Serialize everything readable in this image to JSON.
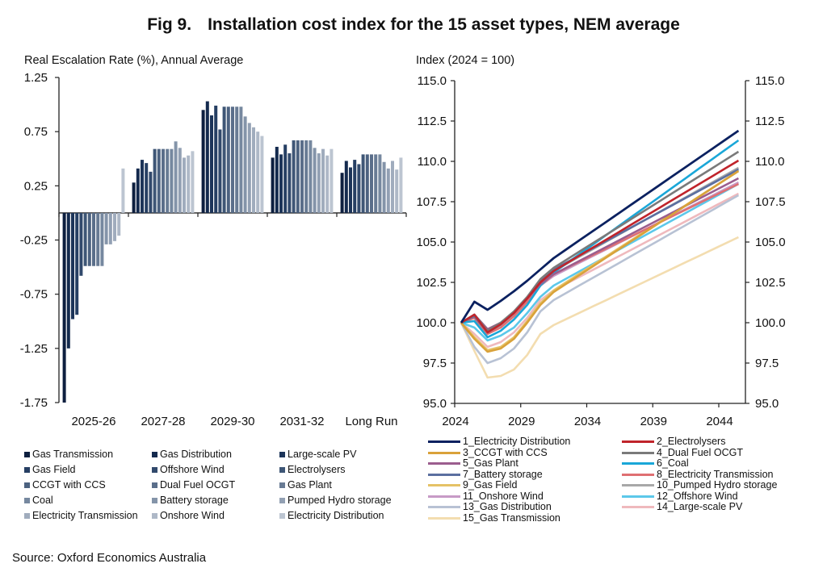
{
  "title": {
    "fig": "Fig 9.",
    "text": "Installation cost index for the 15 asset types, NEM average"
  },
  "source": "Source: Oxford Economics Australia",
  "chart_data": [
    {
      "type": "bar",
      "title": "Real Escalation Rate (%), Annual Average",
      "ylabel": "Real Escalation Rate (%), Annual Average",
      "xlabel": "",
      "ylim": [
        -1.75,
        1.25
      ],
      "yticks": [
        "1.25",
        "0.75",
        "0.25",
        "-0.25",
        "-0.75",
        "-1.25",
        "-1.75"
      ],
      "ytick_values": [
        1.25,
        0.75,
        0.25,
        -0.25,
        -0.75,
        -1.25,
        -1.75
      ],
      "categories": [
        "2025-26",
        "2027-28",
        "2029-30",
        "2031-32",
        "Long Run"
      ],
      "legend_position": "bottom",
      "series": [
        {
          "name": "Gas Transmission",
          "color": "#0d1f3f",
          "values": [
            -1.75,
            0.28,
            0.95,
            0.51,
            0.37
          ]
        },
        {
          "name": "Gas Distribution",
          "color": "#142a4e",
          "values": [
            -1.25,
            0.41,
            1.03,
            0.61,
            0.48
          ]
        },
        {
          "name": "Large-scale PV",
          "color": "#1c3459",
          "values": [
            -0.98,
            0.49,
            0.9,
            0.54,
            0.42
          ]
        },
        {
          "name": "Gas Field",
          "color": "#263f63",
          "values": [
            -0.94,
            0.46,
            0.99,
            0.63,
            0.49
          ]
        },
        {
          "name": "Offshore Wind",
          "color": "#31496c",
          "values": [
            -0.58,
            0.38,
            0.77,
            0.55,
            0.45
          ]
        },
        {
          "name": "Electrolysers",
          "color": "#3e5676",
          "values": [
            -0.49,
            0.59,
            0.98,
            0.67,
            0.54
          ]
        },
        {
          "name": "CCGT with CCS",
          "color": "#4c6280",
          "values": [
            -0.49,
            0.59,
            0.98,
            0.67,
            0.54
          ]
        },
        {
          "name": "Dual Fuel OCGT",
          "color": "#5a6e8a",
          "values": [
            -0.49,
            0.59,
            0.98,
            0.67,
            0.54
          ]
        },
        {
          "name": "Gas Plant",
          "color": "#687b94",
          "values": [
            -0.49,
            0.59,
            0.98,
            0.67,
            0.54
          ]
        },
        {
          "name": "Coal",
          "color": "#76889f",
          "values": [
            -0.49,
            0.59,
            0.98,
            0.67,
            0.54
          ]
        },
        {
          "name": "Battery storage",
          "color": "#8494a9",
          "values": [
            -0.29,
            0.66,
            0.89,
            0.6,
            0.47
          ]
        },
        {
          "name": "Pumped Hydro storage",
          "color": "#92a0b3",
          "values": [
            -0.29,
            0.6,
            0.83,
            0.55,
            0.41
          ]
        },
        {
          "name": "Electricity Transmission",
          "color": "#a0acbd",
          "values": [
            -0.26,
            0.51,
            0.79,
            0.59,
            0.48
          ]
        },
        {
          "name": "Onshore Wind",
          "color": "#aeb8c7",
          "values": [
            -0.21,
            0.53,
            0.75,
            0.53,
            0.4
          ]
        },
        {
          "name": "Electricity Distribution",
          "color": "#bcc5d1",
          "values": [
            0.41,
            0.57,
            0.71,
            0.59,
            0.51
          ]
        }
      ]
    },
    {
      "type": "line",
      "title": "Index (2024 = 100)",
      "ylabel": "Index (2024 = 100)",
      "xlabel": "",
      "ylim": [
        95.0,
        115.0
      ],
      "xlim": [
        2024,
        2045
      ],
      "yticks": [
        "115.0",
        "112.5",
        "110.0",
        "107.5",
        "105.0",
        "102.5",
        "100.0",
        "97.5",
        "95.0"
      ],
      "ytick_values": [
        115.0,
        112.5,
        110.0,
        107.5,
        105.0,
        102.5,
        100.0,
        97.5,
        95.0
      ],
      "xticks": [
        "2024",
        "2029",
        "2034",
        "2039",
        "2044"
      ],
      "xtick_values": [
        2024,
        2029,
        2034,
        2039,
        2044
      ],
      "x": [
        2024,
        2025,
        2026,
        2027,
        2028,
        2029,
        2030,
        2031,
        2032,
        2033,
        2034,
        2035,
        2036,
        2037,
        2038,
        2039,
        2040,
        2041,
        2042,
        2043,
        2044,
        2045
      ],
      "legend_position": "bottom",
      "series": [
        {
          "name": "1_Electricity Distribution",
          "color": "#0b2160",
          "anchors": [
            100.0,
            101.3,
            100.8,
            101.35,
            101.95,
            102.6,
            103.3,
            104.0
          ],
          "end": 111.9
        },
        {
          "name": "2_Electrolysers",
          "color": "#c0242b",
          "anchors": [
            100.0,
            100.5,
            99.4,
            99.9,
            100.6,
            101.5,
            102.5,
            103.2
          ],
          "end": 110.05
        },
        {
          "name": "3_CCGT with CCS",
          "color": "#d9a23a",
          "anchors": [
            100.0,
            99.0,
            98.2,
            98.4,
            99.0,
            100.0,
            101.1,
            101.9
          ],
          "end": 109.4
        },
        {
          "name": "4_Dual Fuel OCGT",
          "color": "#7a7a7a",
          "anchors": [
            100.0,
            100.5,
            99.5,
            100.0,
            100.7,
            101.6,
            102.7,
            103.4
          ],
          "end": 110.6
        },
        {
          "name": "5_Gas Plant",
          "color": "#9b5d8e",
          "anchors": [
            100.0,
            100.5,
            99.6,
            100.0,
            100.6,
            101.5,
            102.4,
            103.0
          ],
          "end": 108.95
        },
        {
          "name": "6_Coal",
          "color": "#1aa7d8",
          "anchors": [
            100.0,
            100.1,
            99.1,
            99.5,
            100.2,
            101.1,
            102.3,
            103.1
          ],
          "end": 111.3
        },
        {
          "name": "7_Battery storage",
          "color": "#5b6fa0",
          "anchors": [
            100.0,
            100.4,
            99.4,
            99.9,
            100.6,
            101.5,
            102.6,
            103.3
          ],
          "end": 109.5
        },
        {
          "name": "8_Electricity Transmission",
          "color": "#df6f72",
          "anchors": [
            100.0,
            100.3,
            99.3,
            99.7,
            100.4,
            101.3,
            102.3,
            103.0
          ],
          "end": 108.6
        },
        {
          "name": "9_Gas Field",
          "color": "#e5c266",
          "anchors": [
            100.0,
            99.1,
            98.3,
            98.5,
            99.1,
            100.1,
            101.2,
            102.0
          ],
          "end": 109.4
        },
        {
          "name": "10_Pumped Hydro storage",
          "color": "#a8a8a8",
          "anchors": [
            100.0,
            100.3,
            99.4,
            99.8,
            100.5,
            101.4,
            102.5,
            103.2
          ],
          "end": 109.6
        },
        {
          "name": "11_Onshore Wind",
          "color": "#c79ac6",
          "anchors": [
            100.0,
            100.4,
            99.5,
            99.9,
            100.5,
            101.3,
            102.3,
            102.9
          ],
          "end": 108.7
        },
        {
          "name": "12_Offshore Wind",
          "color": "#5cc8ea",
          "anchors": [
            100.0,
            99.7,
            98.9,
            99.2,
            99.7,
            100.6,
            101.6,
            102.3
          ],
          "end": 108.6
        },
        {
          "name": "13_Gas Distribution",
          "color": "#b8c2d4",
          "anchors": [
            100.0,
            98.5,
            97.5,
            97.8,
            98.4,
            99.4,
            100.7,
            101.4
          ],
          "end": 107.9
        },
        {
          "name": "14_Large-scale PV",
          "color": "#efb9bd",
          "anchors": [
            100.0,
            99.3,
            98.5,
            98.8,
            99.4,
            100.3,
            101.4,
            102.0
          ],
          "end": 108.0
        },
        {
          "name": "15_Gas Transmission",
          "color": "#f3ddb0",
          "anchors": [
            100.0,
            98.25,
            96.6,
            96.7,
            97.1,
            98.0,
            99.3,
            99.85
          ],
          "end": 105.3
        }
      ]
    }
  ]
}
